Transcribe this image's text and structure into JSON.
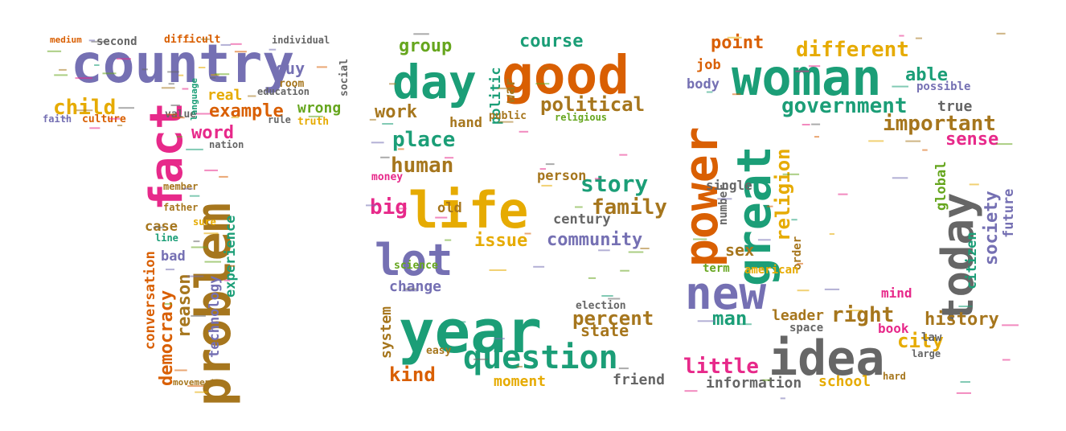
{
  "image": {
    "description_free": true,
    "palette": {
      "purple": "#7570b3",
      "pink": "#e7298a",
      "olive": "#a6761d",
      "orange": "#d95f02",
      "green": "#1b9e77",
      "lime": "#66a61e",
      "gold": "#e6ab02",
      "gray": "#666666"
    },
    "words": [
      {
        "text": "country",
        "color": "purple"
      },
      {
        "text": "fact",
        "color": "pink"
      },
      {
        "text": "problem",
        "color": "olive"
      },
      {
        "text": "child",
        "color": "gold"
      },
      {
        "text": "example",
        "color": "orange"
      },
      {
        "text": "word",
        "color": "pink"
      },
      {
        "text": "democracy",
        "color": "orange"
      },
      {
        "text": "reason",
        "color": "olive"
      },
      {
        "text": "conversation",
        "color": "orange"
      },
      {
        "text": "technology",
        "color": "purple"
      },
      {
        "text": "experience",
        "color": "green"
      },
      {
        "text": "wrong",
        "color": "lime"
      },
      {
        "text": "guy",
        "color": "purple"
      },
      {
        "text": "real",
        "color": "gold"
      },
      {
        "text": "case",
        "color": "olive"
      },
      {
        "text": "bad",
        "color": "purple"
      },
      {
        "text": "truth",
        "color": "gold"
      },
      {
        "text": "culture",
        "color": "orange"
      },
      {
        "text": "second",
        "color": "gray"
      },
      {
        "text": "difficult",
        "color": "orange"
      },
      {
        "text": "individual",
        "color": "gray"
      },
      {
        "text": "social",
        "color": "gray"
      },
      {
        "text": "education",
        "color": "gray"
      },
      {
        "text": "room",
        "color": "olive"
      },
      {
        "text": "rule",
        "color": "gray"
      },
      {
        "text": "value",
        "color": "gray"
      },
      {
        "text": "nation",
        "color": "gray"
      },
      {
        "text": "language",
        "color": "green"
      },
      {
        "text": "medium",
        "color": "orange"
      },
      {
        "text": "faith",
        "color": "purple"
      },
      {
        "text": "line",
        "color": "green"
      },
      {
        "text": "sure",
        "color": "gold"
      },
      {
        "text": "father",
        "color": "olive"
      },
      {
        "text": "member",
        "color": "olive"
      },
      {
        "text": "movement",
        "color": "olive"
      },
      {
        "text": "day",
        "color": "green"
      },
      {
        "text": "good",
        "color": "orange"
      },
      {
        "text": "life",
        "color": "gold"
      },
      {
        "text": "lot",
        "color": "purple"
      },
      {
        "text": "year",
        "color": "green"
      },
      {
        "text": "question",
        "color": "green"
      },
      {
        "text": "group",
        "color": "lime"
      },
      {
        "text": "course",
        "color": "green"
      },
      {
        "text": "political",
        "color": "olive"
      },
      {
        "text": "work",
        "color": "olive"
      },
      {
        "text": "place",
        "color": "green"
      },
      {
        "text": "human",
        "color": "olive"
      },
      {
        "text": "story",
        "color": "green"
      },
      {
        "text": "family",
        "color": "olive"
      },
      {
        "text": "big",
        "color": "pink"
      },
      {
        "text": "issue",
        "color": "gold"
      },
      {
        "text": "community",
        "color": "purple"
      },
      {
        "text": "percent",
        "color": "olive"
      },
      {
        "text": "state",
        "color": "olive"
      },
      {
        "text": "kind",
        "color": "orange"
      },
      {
        "text": "moment",
        "color": "gold"
      },
      {
        "text": "friend",
        "color": "gray"
      },
      {
        "text": "change",
        "color": "purple"
      },
      {
        "text": "system",
        "color": "olive"
      },
      {
        "text": "century",
        "color": "gray"
      },
      {
        "text": "person",
        "color": "olive"
      },
      {
        "text": "hand",
        "color": "olive"
      },
      {
        "text": "war",
        "color": "olive"
      },
      {
        "text": "politic",
        "color": "green"
      },
      {
        "text": "money",
        "color": "pink"
      },
      {
        "text": "old",
        "color": "olive"
      },
      {
        "text": "science",
        "color": "lime"
      },
      {
        "text": "easy",
        "color": "olive"
      },
      {
        "text": "election",
        "color": "gray"
      },
      {
        "text": "religious",
        "color": "lime"
      },
      {
        "text": "public",
        "color": "olive"
      },
      {
        "text": "woman",
        "color": "green"
      },
      {
        "text": "power",
        "color": "orange"
      },
      {
        "text": "great",
        "color": "green"
      },
      {
        "text": "new",
        "color": "purple"
      },
      {
        "text": "idea",
        "color": "gray"
      },
      {
        "text": "today",
        "color": "gray"
      },
      {
        "text": "different",
        "color": "gold"
      },
      {
        "text": "government",
        "color": "green"
      },
      {
        "text": "important",
        "color": "olive"
      },
      {
        "text": "point",
        "color": "orange"
      },
      {
        "text": "able",
        "color": "green"
      },
      {
        "text": "religion",
        "color": "gold"
      },
      {
        "text": "society",
        "color": "purple"
      },
      {
        "text": "history",
        "color": "olive"
      },
      {
        "text": "right",
        "color": "olive"
      },
      {
        "text": "little",
        "color": "pink"
      },
      {
        "text": "man",
        "color": "green"
      },
      {
        "text": "city",
        "color": "gold"
      },
      {
        "text": "sense",
        "color": "pink"
      },
      {
        "text": "future",
        "color": "purple"
      },
      {
        "text": "information",
        "color": "gray"
      },
      {
        "text": "school",
        "color": "gold"
      },
      {
        "text": "sex",
        "color": "olive"
      },
      {
        "text": "leader",
        "color": "olive"
      },
      {
        "text": "book",
        "color": "pink"
      },
      {
        "text": "global",
        "color": "lime"
      },
      {
        "text": "true",
        "color": "gray"
      },
      {
        "text": "job",
        "color": "orange"
      },
      {
        "text": "body",
        "color": "purple"
      },
      {
        "text": "single",
        "color": "gray"
      },
      {
        "text": "number",
        "color": "gray"
      },
      {
        "text": "order",
        "color": "olive"
      },
      {
        "text": "american",
        "color": "gold"
      },
      {
        "text": "mind",
        "color": "pink"
      },
      {
        "text": "citizen",
        "color": "green"
      },
      {
        "text": "space",
        "color": "gray"
      },
      {
        "text": "law",
        "color": "gray"
      },
      {
        "text": "possible",
        "color": "purple"
      },
      {
        "text": "term",
        "color": "lime"
      },
      {
        "text": "hard",
        "color": "olive"
      },
      {
        "text": "large",
        "color": "gray"
      }
    ]
  }
}
